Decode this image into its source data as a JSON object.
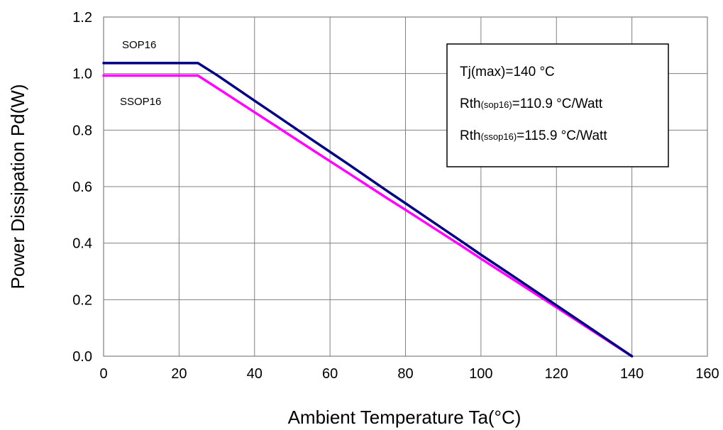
{
  "chart_data": {
    "type": "line",
    "title": "",
    "xlabel": "Ambient Temperature Ta(°C)",
    "ylabel": "Power Dissipation Pd(W)",
    "xlim": [
      0,
      160
    ],
    "ylim": [
      0,
      1.2
    ],
    "xticks": [
      0,
      20,
      40,
      60,
      80,
      100,
      120,
      140,
      160
    ],
    "xtick_labels": [
      "0",
      "20",
      "40",
      "60",
      "80",
      "100",
      "120",
      "140",
      "160"
    ],
    "yticks": [
      0,
      0.2,
      0.4,
      0.6,
      0.8,
      1.0,
      1.2
    ],
    "ytick_labels": [
      "0.0",
      "0.2",
      "0.4",
      "0.6",
      "0.8",
      "1.0",
      "1.2"
    ],
    "grid": true,
    "series": [
      {
        "name": "SOP16",
        "color": "#000080",
        "x": [
          0,
          25,
          30,
          40,
          45,
          55,
          60,
          65,
          75,
          80,
          95,
          100,
          110,
          120,
          130,
          135,
          140
        ],
        "y": [
          1.037,
          1.037,
          0.995,
          0.904,
          0.859,
          0.768,
          0.723,
          0.678,
          0.586,
          0.541,
          0.405,
          0.359,
          0.27,
          0.18,
          0.09,
          0.045,
          0.0
        ]
      },
      {
        "name": "SSOP16",
        "color": "#ff00ff",
        "x": [
          0,
          25,
          30,
          40,
          45,
          55,
          60,
          65,
          75,
          80,
          95,
          100,
          110,
          120,
          130,
          135,
          140
        ],
        "y": [
          0.993,
          0.993,
          0.95,
          0.863,
          0.82,
          0.733,
          0.69,
          0.647,
          0.56,
          0.518,
          0.389,
          0.345,
          0.259,
          0.173,
          0.086,
          0.043,
          0.0
        ]
      }
    ],
    "annotations": [
      {
        "main": "Tj(max)=140 °C",
        "sub": "",
        "rest": ""
      },
      {
        "main": "Rth",
        "sub": "(sop16)",
        "rest": "=110.9 °C/Watt"
      },
      {
        "main": "Rth",
        "sub": "(ssop16)",
        "rest": "=115.9 °C/Watt"
      }
    ]
  }
}
